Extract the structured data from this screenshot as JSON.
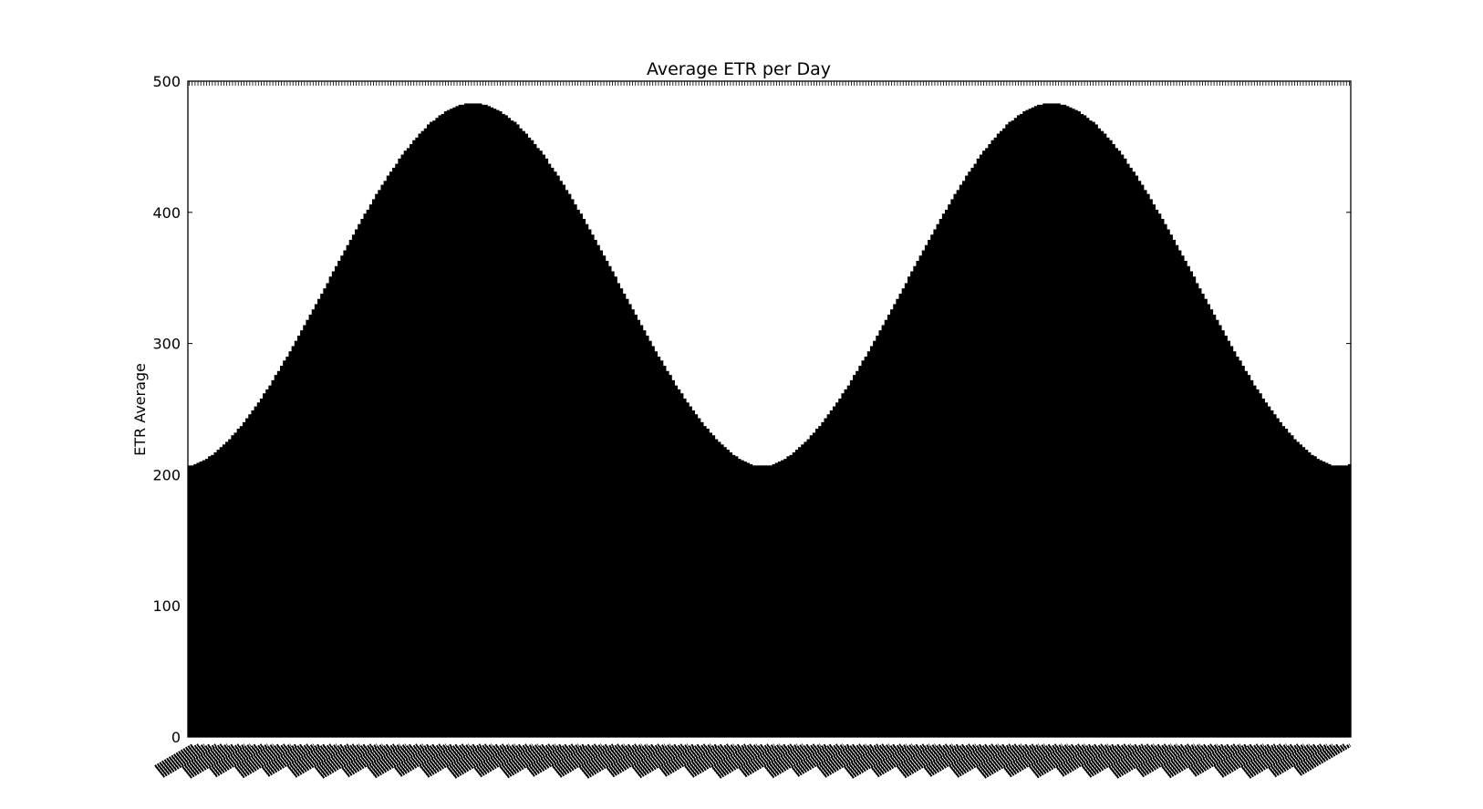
{
  "chart_data": {
    "type": "bar",
    "title": "Average ETR per Day",
    "xlabel": "",
    "ylabel": "ETR Average",
    "ylim": [
      0,
      500
    ],
    "yticks": [
      0,
      100,
      200,
      300,
      400,
      500
    ],
    "bar_color": "#000000",
    "grid": false,
    "x_tick_labels_rotated": true,
    "x_tick_labels_legible": false,
    "series": [
      {
        "values": [
          207,
          207,
          208,
          209,
          210,
          211,
          212,
          214,
          215,
          217,
          219,
          221,
          223,
          225,
          227,
          230,
          232,
          235,
          237,
          240,
          243,
          246,
          249,
          252,
          255,
          258,
          262,
          265,
          268,
          272,
          276,
          279,
          283,
          287,
          290,
          294,
          298,
          302,
          306,
          310,
          314,
          318,
          322,
          326,
          330,
          334,
          338,
          342,
          346,
          351,
          355,
          359,
          363,
          367,
          371,
          375,
          379,
          383,
          387,
          391,
          395,
          399,
          402,
          406,
          410,
          414,
          417,
          421,
          424,
          428,
          431,
          434,
          437,
          441,
          444,
          447,
          449,
          452,
          455,
          457,
          460,
          462,
          464,
          467,
          469,
          470,
          472,
          474,
          475,
          477,
          478,
          479,
          480,
          481,
          482,
          482,
          483,
          483,
          483,
          483,
          483,
          483,
          482,
          482,
          481,
          480,
          479,
          478,
          477,
          475,
          474,
          472,
          470,
          469,
          467,
          464,
          462,
          460,
          457,
          455,
          452,
          449,
          447,
          444,
          441,
          437,
          434,
          431,
          428,
          424,
          421,
          417,
          414,
          410,
          406,
          402,
          399,
          395,
          391,
          387,
          383,
          379,
          375,
          371,
          367,
          363,
          359,
          355,
          351,
          346,
          342,
          338,
          334,
          330,
          326,
          322,
          318,
          314,
          310,
          306,
          302,
          298,
          294,
          290,
          287,
          283,
          279,
          276,
          272,
          268,
          265,
          262,
          258,
          255,
          252,
          249,
          246,
          243,
          240,
          237,
          235,
          232,
          230,
          227,
          225,
          223,
          221,
          219,
          217,
          215,
          214,
          212,
          211,
          210,
          209,
          208,
          207,
          207,
          207,
          207,
          207,
          207,
          207,
          208,
          209,
          210,
          211,
          212,
          214,
          215,
          217,
          219,
          221,
          223,
          225,
          227,
          230,
          232,
          235,
          237,
          240,
          243,
          246,
          249,
          252,
          255,
          258,
          262,
          265,
          268,
          272,
          276,
          279,
          283,
          287,
          290,
          294,
          298,
          302,
          306,
          310,
          314,
          318,
          322,
          326,
          330,
          334,
          338,
          342,
          346,
          351,
          355,
          359,
          363,
          367,
          371,
          375,
          379,
          383,
          387,
          391,
          395,
          399,
          402,
          406,
          410,
          414,
          417,
          421,
          424,
          428,
          431,
          434,
          437,
          441,
          444,
          447,
          449,
          452,
          455,
          457,
          460,
          462,
          464,
          467,
          469,
          470,
          472,
          474,
          475,
          477,
          478,
          479,
          480,
          481,
          482,
          482,
          483,
          483,
          483,
          483,
          483,
          483,
          482,
          482,
          481,
          480,
          479,
          478,
          477,
          475,
          474,
          472,
          470,
          469,
          467,
          464,
          462,
          460,
          457,
          455,
          452,
          449,
          447,
          444,
          441,
          437,
          434,
          431,
          428,
          424,
          421,
          417,
          414,
          410,
          406,
          402,
          399,
          395,
          391,
          387,
          383,
          379,
          375,
          371,
          367,
          363,
          359,
          355,
          351,
          346,
          342,
          338,
          334,
          330,
          326,
          322,
          318,
          314,
          310,
          306,
          302,
          298,
          294,
          290,
          287,
          283,
          279,
          276,
          272,
          268,
          265,
          262,
          258,
          255,
          252,
          249,
          246,
          243,
          240,
          237,
          235,
          232,
          230,
          227,
          225,
          223,
          221,
          219,
          217,
          215,
          214,
          212,
          211,
          210,
          209,
          208,
          207,
          207,
          207,
          207,
          207,
          207,
          208
        ]
      }
    ]
  }
}
